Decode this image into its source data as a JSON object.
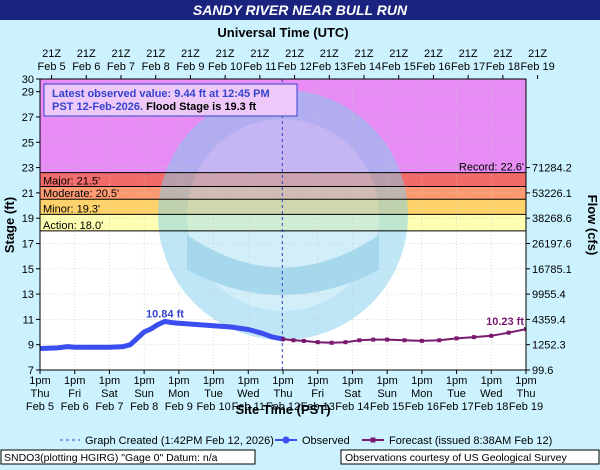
{
  "header": {
    "title": "SANDY RIVER NEAR BULL RUN",
    "top_axis_title": "Universal Time (UTC)"
  },
  "colors": {
    "title_bar": "#1a237e",
    "page_bg": "#ccf2ff",
    "purple_zone": "#e78cf5",
    "major": "#f26b6b",
    "moderate": "#ff9a70",
    "minor": "#ffd36b",
    "action": "#ffffb3",
    "observed": "#3b4ef0",
    "forecast": "#7a1a6e",
    "crosshair": "#3344cc"
  },
  "info_box": {
    "line1": "Latest observed value: 9.44 ft at 12:45 PM",
    "line2a": "PST 12-Feb-2026.",
    "line2b": " Flood Stage is 19.3 ft"
  },
  "chart_data": {
    "type": "line",
    "xlabel": "Site Time (PST)",
    "ylabel": "Stage (ft)",
    "y2label": "Flow (cfs)",
    "ylim": [
      7,
      30
    ],
    "x_unit": "days_from_feb5_1pm_pst",
    "xlim": [
      0,
      14
    ],
    "y_ticks": [
      7,
      9,
      11,
      13,
      15,
      17,
      19,
      21,
      23,
      25,
      27,
      29,
      30
    ],
    "flow_ticks": [
      {
        "stage": 7,
        "label": "99.6"
      },
      {
        "stage": 9,
        "label": "1252.3"
      },
      {
        "stage": 11,
        "label": "4359.4"
      },
      {
        "stage": 13,
        "label": "9955.4"
      },
      {
        "stage": 15,
        "label": "16785.1"
      },
      {
        "stage": 17,
        "label": "26197.6"
      },
      {
        "stage": 19,
        "label": "38268.6"
      },
      {
        "stage": 21,
        "label": "53226.1"
      },
      {
        "stage": 23,
        "label": "71284.2"
      }
    ],
    "bottom_ticks": [
      {
        "t1": "1pm",
        "t2": "Thu",
        "t3": "Feb 5"
      },
      {
        "t1": "1pm",
        "t2": "Fri",
        "t3": "Feb 6"
      },
      {
        "t1": "1pm",
        "t2": "Sat",
        "t3": "Feb 7"
      },
      {
        "t1": "1pm",
        "t2": "Sun",
        "t3": "Feb 8"
      },
      {
        "t1": "1pm",
        "t2": "Mon",
        "t3": "Feb 9"
      },
      {
        "t1": "1pm",
        "t2": "Tue",
        "t3": "Feb 10"
      },
      {
        "t1": "1pm",
        "t2": "Wed",
        "t3": "Feb 11"
      },
      {
        "t1": "1pm",
        "t2": "Thu",
        "t3": "Feb 12"
      },
      {
        "t1": "1pm",
        "t2": "Fri",
        "t3": "Feb 13"
      },
      {
        "t1": "1pm",
        "t2": "Sat",
        "t3": "Feb 14"
      },
      {
        "t1": "1pm",
        "t2": "Sun",
        "t3": "Feb 15"
      },
      {
        "t1": "1pm",
        "t2": "Mon",
        "t3": "Feb 16"
      },
      {
        "t1": "1pm",
        "t2": "Tue",
        "t3": "Feb 17"
      },
      {
        "t1": "1pm",
        "t2": "Wed",
        "t3": "Feb 18"
      },
      {
        "t1": "1pm",
        "t2": "Thu",
        "t3": "Feb 19"
      }
    ],
    "top_ticks": [
      {
        "t1": "21Z",
        "t2": "Feb 5"
      },
      {
        "t1": "21Z",
        "t2": "Feb 6"
      },
      {
        "t1": "21Z",
        "t2": "Feb 7"
      },
      {
        "t1": "21Z",
        "t2": "Feb 8"
      },
      {
        "t1": "21Z",
        "t2": "Feb 9"
      },
      {
        "t1": "21Z",
        "t2": "Feb 10"
      },
      {
        "t1": "21Z",
        "t2": "Feb 11"
      },
      {
        "t1": "21Z",
        "t2": "Feb 12"
      },
      {
        "t1": "21Z",
        "t2": "Feb 13"
      },
      {
        "t1": "21Z",
        "t2": "Feb 14"
      },
      {
        "t1": "21Z",
        "t2": "Feb 15"
      },
      {
        "t1": "21Z",
        "t2": "Feb 16"
      },
      {
        "t1": "21Z",
        "t2": "Feb 17"
      },
      {
        "t1": "21Z",
        "t2": "Feb 18"
      },
      {
        "t1": "21Z",
        "t2": "Feb 19"
      }
    ],
    "flood_categories": [
      {
        "name": "major",
        "label": "Major: 21.5'",
        "from": 21.5,
        "to": 22.6
      },
      {
        "name": "moderate",
        "label": "Moderate: 20.5'",
        "from": 20.5,
        "to": 21.5
      },
      {
        "name": "minor",
        "label": "Minor: 19.3'",
        "from": 19.3,
        "to": 20.5
      },
      {
        "name": "action",
        "label": "Action: 18.0'",
        "from": 18.0,
        "to": 19.3
      }
    ],
    "record": {
      "label": "Record: 22.6'",
      "value": 22.6
    },
    "graph_created_day": 6.98,
    "observed": {
      "name": "Observed",
      "points": [
        [
          0,
          8.7
        ],
        [
          0.5,
          8.75
        ],
        [
          0.8,
          8.85
        ],
        [
          1.0,
          8.8
        ],
        [
          1.5,
          8.8
        ],
        [
          2.0,
          8.8
        ],
        [
          2.4,
          8.85
        ],
        [
          2.6,
          9.0
        ],
        [
          2.8,
          9.5
        ],
        [
          3.0,
          10.0
        ],
        [
          3.2,
          10.25
        ],
        [
          3.4,
          10.6
        ],
        [
          3.6,
          10.84
        ],
        [
          3.8,
          10.75
        ],
        [
          4.0,
          10.7
        ],
        [
          4.5,
          10.6
        ],
        [
          5.0,
          10.5
        ],
        [
          5.5,
          10.4
        ],
        [
          6.0,
          10.2
        ],
        [
          6.4,
          9.9
        ],
        [
          6.7,
          9.6
        ],
        [
          7.0,
          9.44
        ]
      ],
      "peak_label": "10.84 ft",
      "peak": [
        3.6,
        10.84
      ]
    },
    "forecast": {
      "name": "Forecast",
      "points": [
        [
          7.0,
          9.44
        ],
        [
          7.3,
          9.35
        ],
        [
          7.6,
          9.3
        ],
        [
          8.0,
          9.2
        ],
        [
          8.4,
          9.15
        ],
        [
          8.8,
          9.2
        ],
        [
          9.2,
          9.35
        ],
        [
          9.6,
          9.4
        ],
        [
          10.0,
          9.4
        ],
        [
          10.5,
          9.35
        ],
        [
          11.0,
          9.3
        ],
        [
          11.5,
          9.35
        ],
        [
          12.0,
          9.5
        ],
        [
          12.5,
          9.6
        ],
        [
          13.0,
          9.7
        ],
        [
          13.5,
          9.95
        ],
        [
          14.0,
          10.23
        ]
      ],
      "end_label": "10.23 ft"
    }
  },
  "legend": {
    "graph_created": "Graph Created (1:42PM Feb 12, 2026)",
    "observed": "Observed",
    "forecast": "Forecast (issued 8:38AM Feb 12)"
  },
  "footer": {
    "left": "SNDO3(plotting HGIRG) \"Gage 0\" Datum: n/a",
    "right": "Observations courtesy of US Geological Survey"
  }
}
